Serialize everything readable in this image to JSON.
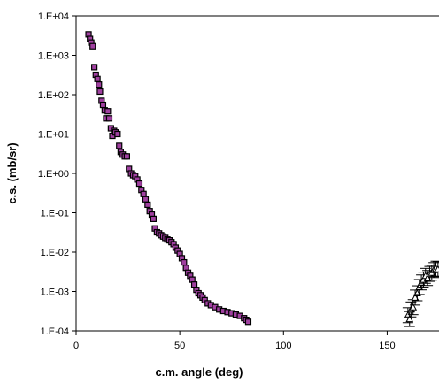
{
  "chart_data": {
    "type": "scatter",
    "title": "",
    "xlabel": "c.m. angle (deg)",
    "ylabel": "c.s. (mb/sr)",
    "xlim": [
      0,
      175
    ],
    "ylim": [
      0.0001,
      10000
    ],
    "yscale": "log",
    "grid": false,
    "legend": "none",
    "x_ticks": [
      "0",
      "50",
      "100",
      "150"
    ],
    "y_ticks": [
      "1.E-04",
      "1.E-03",
      "1.E-02",
      "1.E-01",
      "1.E+00",
      "1.E+01",
      "1.E+02",
      "1.E+03",
      "1.E+04"
    ],
    "marker_fill": "#a040a0",
    "marker_stroke": "#000000",
    "series": [
      {
        "marker": "square",
        "points": [
          [
            6.0,
            3400
          ],
          [
            6.7,
            2600
          ],
          [
            7.3,
            2100
          ],
          [
            8.0,
            1700
          ],
          [
            8.8,
            500
          ],
          [
            9.5,
            320
          ],
          [
            10.3,
            250
          ],
          [
            11.0,
            180
          ],
          [
            11.5,
            120
          ],
          [
            12.3,
            70
          ],
          [
            13.0,
            55
          ],
          [
            13.8,
            40
          ],
          [
            14.5,
            25
          ],
          [
            15.3,
            38
          ],
          [
            16.0,
            25
          ],
          [
            16.8,
            14
          ],
          [
            17.5,
            9
          ],
          [
            18.3,
            12
          ],
          [
            19.0,
            11
          ],
          [
            20.0,
            10
          ],
          [
            20.8,
            5
          ],
          [
            21.5,
            3.5
          ],
          [
            22.5,
            3
          ],
          [
            23.5,
            2.7
          ],
          [
            24.5,
            2.7
          ],
          [
            25.5,
            1.3
          ],
          [
            26.5,
            1.0
          ],
          [
            27.5,
            0.9
          ],
          [
            28.5,
            0.85
          ],
          [
            29.5,
            0.7
          ],
          [
            30.5,
            0.55
          ],
          [
            31.5,
            0.38
          ],
          [
            32.5,
            0.3
          ],
          [
            33.5,
            0.22
          ],
          [
            34.5,
            0.16
          ],
          [
            35.5,
            0.11
          ],
          [
            36.5,
            0.09
          ],
          [
            37.3,
            0.07
          ],
          [
            38.0,
            0.04
          ],
          [
            39.0,
            0.032
          ],
          [
            40.0,
            0.03
          ],
          [
            41.0,
            0.027
          ],
          [
            42.0,
            0.025
          ],
          [
            43.0,
            0.023
          ],
          [
            44.0,
            0.021
          ],
          [
            45.0,
            0.02
          ],
          [
            46.0,
            0.018
          ],
          [
            47.0,
            0.016
          ],
          [
            48.0,
            0.013
          ],
          [
            49.0,
            0.011
          ],
          [
            50.0,
            0.009
          ],
          [
            51.0,
            0.007
          ],
          [
            52.0,
            0.0055
          ],
          [
            53.0,
            0.004
          ],
          [
            54.0,
            0.003
          ],
          [
            55.0,
            0.0025
          ],
          [
            56.0,
            0.002
          ],
          [
            57.0,
            0.0015
          ],
          [
            58.0,
            0.0011
          ],
          [
            59.0,
            0.0009
          ],
          [
            60.0,
            0.0008
          ],
          [
            61.0,
            0.0007
          ],
          [
            62.0,
            0.0006
          ],
          [
            63.5,
            0.0005
          ],
          [
            65.0,
            0.00045
          ],
          [
            67.0,
            0.0004
          ],
          [
            69.0,
            0.00035
          ],
          [
            71.0,
            0.00032
          ],
          [
            73.0,
            0.0003
          ],
          [
            75.0,
            0.00028
          ],
          [
            77.0,
            0.00026
          ],
          [
            79.0,
            0.00024
          ],
          [
            81.0,
            0.00021
          ],
          [
            82.0,
            0.00019
          ],
          [
            83.0,
            0.00017
          ]
        ]
      },
      {
        "marker": "triangle",
        "error_bars": true,
        "points": [
          [
            160.0,
            0.00025
          ],
          [
            160.8,
            0.0002
          ],
          [
            161.5,
            0.00035
          ],
          [
            162.5,
            0.0004
          ],
          [
            163.5,
            0.0007
          ],
          [
            164.5,
            0.0009
          ],
          [
            165.5,
            0.0013
          ],
          [
            166.5,
            0.0017
          ],
          [
            167.5,
            0.002
          ],
          [
            168.5,
            0.0025
          ],
          [
            169.5,
            0.0022
          ],
          [
            170.5,
            0.0028
          ],
          [
            171.5,
            0.003
          ],
          [
            172.5,
            0.0035
          ],
          [
            173.5,
            0.0038
          ],
          [
            174.5,
            0.0037
          ]
        ]
      }
    ]
  }
}
